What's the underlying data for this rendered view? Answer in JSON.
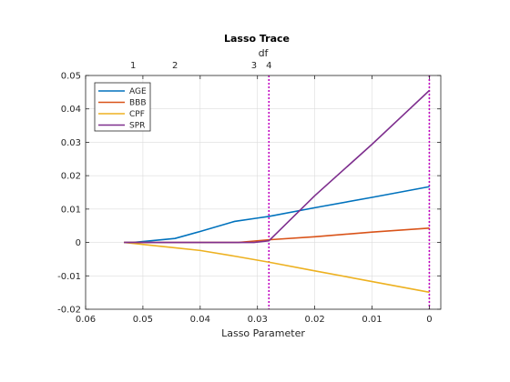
{
  "chart_data": {
    "type": "line",
    "title": "Lasso Trace",
    "xlabel": "Lasso Parameter",
    "ylabel": "",
    "top_axis_label": "df",
    "xlim": [
      0.06,
      -0.002
    ],
    "ylim": [
      -0.02,
      0.05
    ],
    "x_reversed": true,
    "grid": true,
    "legend_position": "top-left",
    "x_ticks": [
      0.06,
      0.05,
      0.04,
      0.03,
      0.02,
      0.01,
      0
    ],
    "x_tick_labels": [
      "0.06",
      "0.05",
      "0.04",
      "0.03",
      "0.02",
      "0.01",
      "0"
    ],
    "y_ticks": [
      -0.02,
      -0.01,
      0,
      0.01,
      0.02,
      0.03,
      0.04,
      0.05
    ],
    "y_tick_labels": [
      "-0.02",
      "-0.01",
      "0",
      "0.01",
      "0.02",
      "0.03",
      "0.04",
      "0.05"
    ],
    "df_ticks": [
      {
        "x": 0.0517,
        "label": "1"
      },
      {
        "x": 0.0444,
        "label": "2"
      },
      {
        "x": 0.0306,
        "label": "3"
      },
      {
        "x": 0.028,
        "label": "4"
      }
    ],
    "vertical_markers": [
      {
        "x": 0.028,
        "color": "#C000C0"
      },
      {
        "x": 0.0,
        "color": "#C000C0"
      }
    ],
    "series": [
      {
        "name": "AGE",
        "color": "#0072BD",
        "points": [
          [
            0.0533,
            0
          ],
          [
            0.0517,
            0
          ],
          [
            0.0444,
            0.0012
          ],
          [
            0.04,
            0.0033
          ],
          [
            0.034,
            0.0063
          ],
          [
            0.03,
            0.0073
          ],
          [
            0.028,
            0.0078
          ],
          [
            0.02,
            0.0104
          ],
          [
            0.01,
            0.0135
          ],
          [
            0.0,
            0.0167
          ]
        ]
      },
      {
        "name": "BBB",
        "color": "#D95319",
        "points": [
          [
            0.0533,
            0
          ],
          [
            0.0333,
            0
          ],
          [
            0.028,
            0.0008
          ],
          [
            0.02,
            0.0017
          ],
          [
            0.01,
            0.0031
          ],
          [
            0.0,
            0.0043
          ]
        ]
      },
      {
        "name": "CPF",
        "color": "#EDB120",
        "points": [
          [
            0.0533,
            0
          ],
          [
            0.0444,
            -0.0016
          ],
          [
            0.04,
            -0.0024
          ],
          [
            0.034,
            -0.0041
          ],
          [
            0.028,
            -0.0059
          ],
          [
            0.02,
            -0.0085
          ],
          [
            0.01,
            -0.0117
          ],
          [
            0.0,
            -0.0149
          ]
        ]
      },
      {
        "name": "SPR",
        "color": "#7E2F8E",
        "points": [
          [
            0.0533,
            0
          ],
          [
            0.0306,
            0
          ],
          [
            0.028,
            0.0005
          ],
          [
            0.02,
            0.014
          ],
          [
            0.01,
            0.0294
          ],
          [
            0.0,
            0.0455
          ]
        ]
      }
    ]
  }
}
